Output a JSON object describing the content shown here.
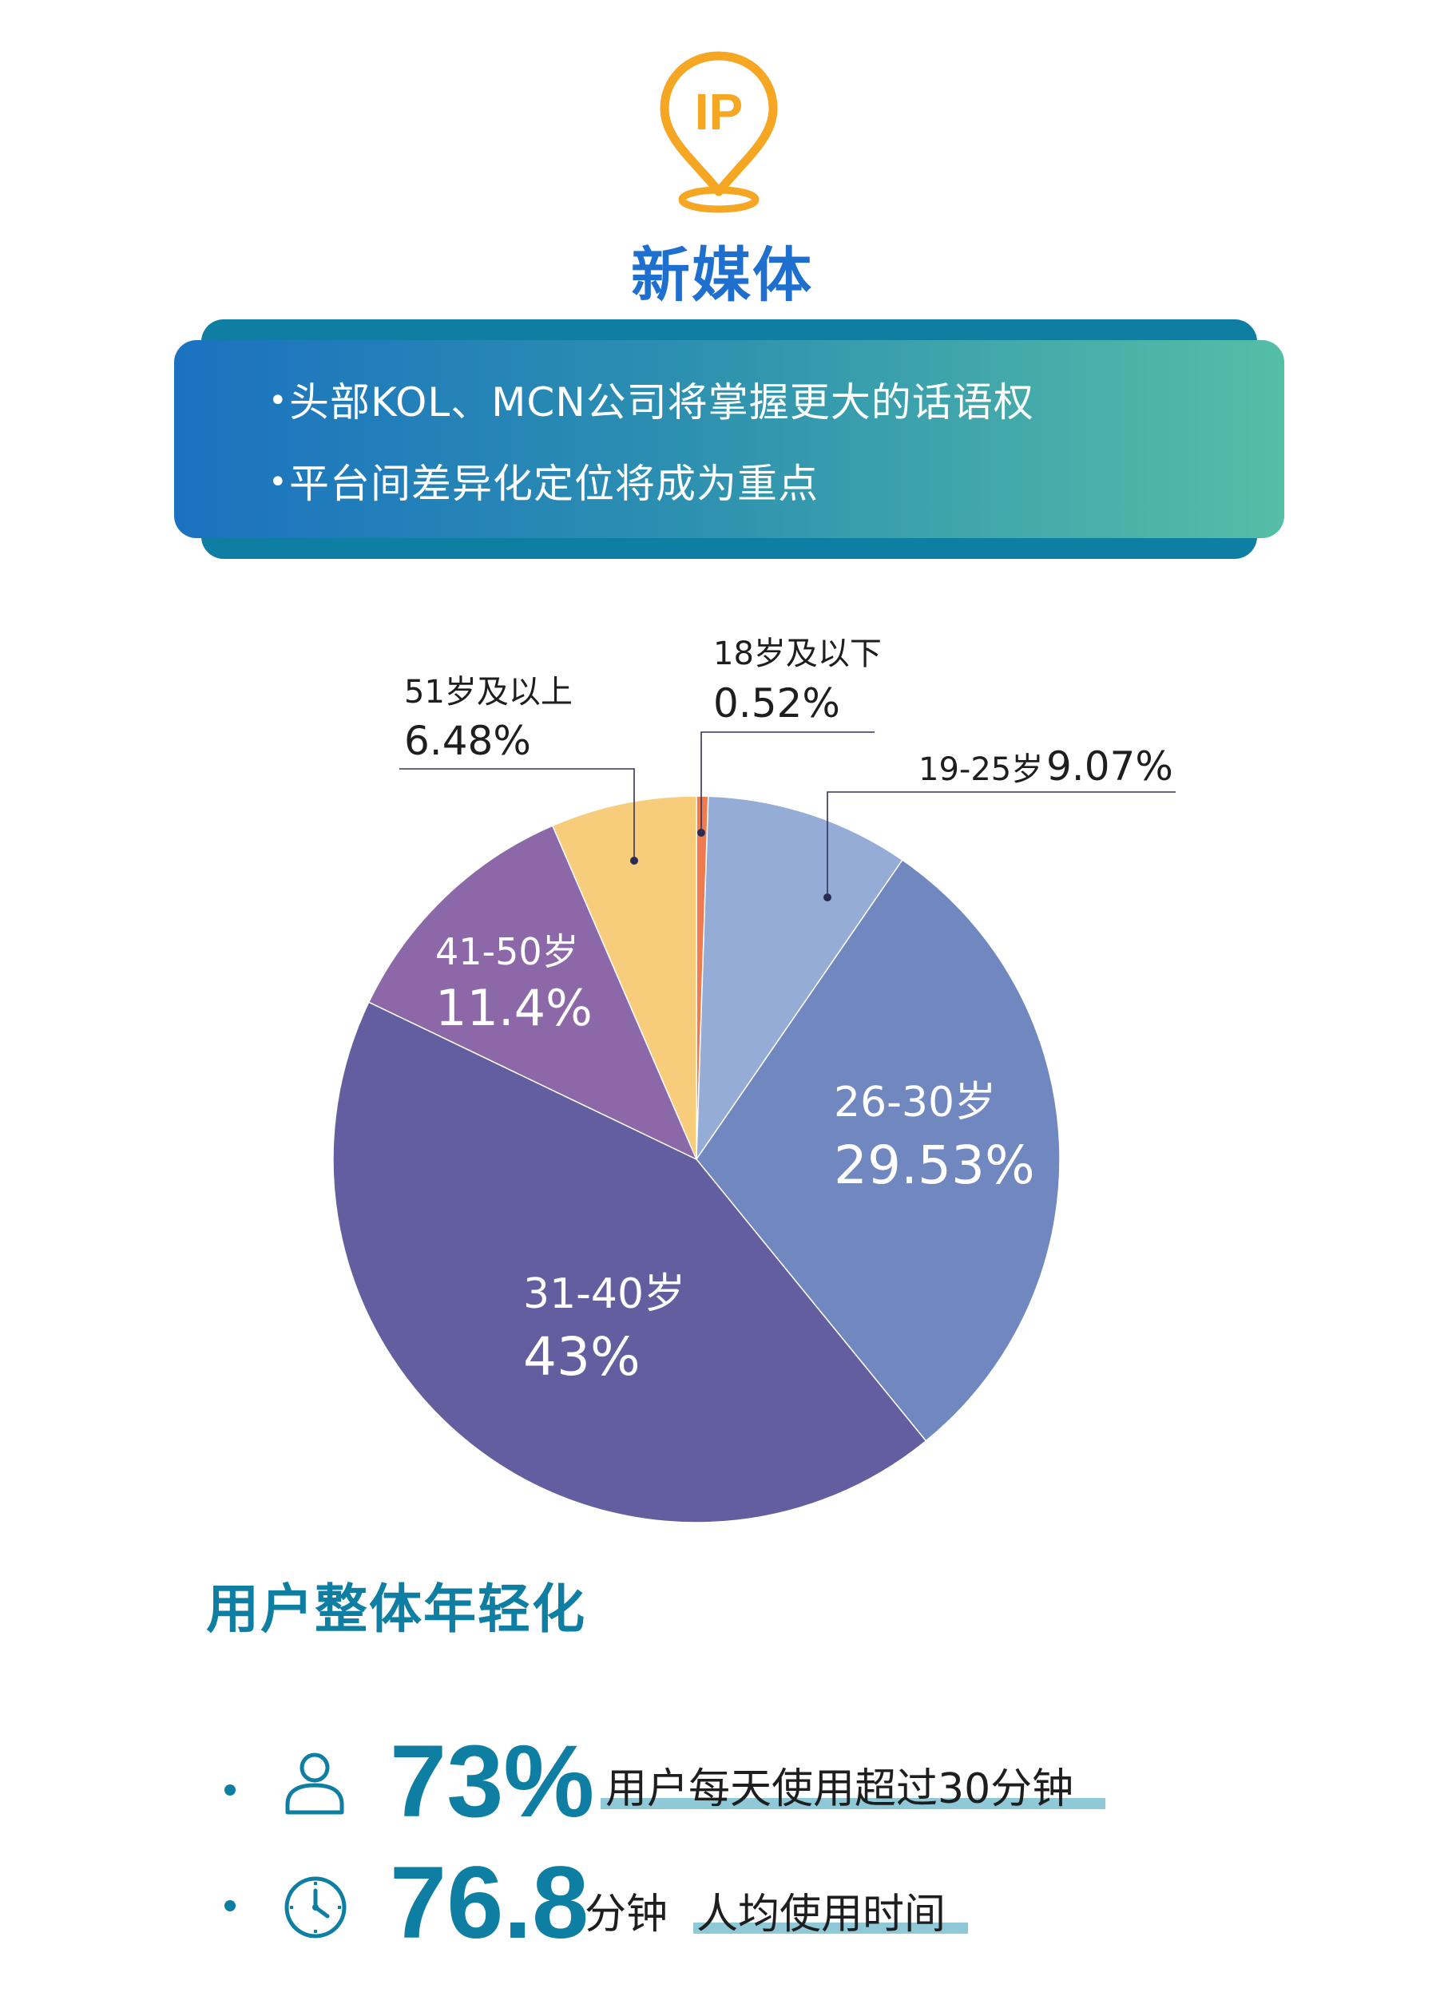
{
  "header": {
    "icon_text": "IP",
    "icon_name": "ip-location-pin-icon",
    "title": "新媒体"
  },
  "banner": {
    "bullet": "•",
    "lines": [
      "头部KOL、MCN公司将掌握更大的话语权",
      "平台间差异化定位将成为重点"
    ]
  },
  "chart_data": {
    "type": "pie",
    "categories": [
      "18岁及以下",
      "19-25岁",
      "26-30岁",
      "31-40岁",
      "41-50岁",
      "51岁及以上"
    ],
    "values": [
      0.52,
      9.07,
      29.53,
      43,
      11.4,
      6.48
    ],
    "value_labels": [
      "0.52%",
      "9.07%",
      "29.53%",
      "43%",
      "11.4%",
      "6.48%"
    ],
    "colors": [
      "#ef7b4e",
      "#94acd6",
      "#7187c0",
      "#635e9f",
      "#8d68a8",
      "#f7cc7a"
    ],
    "start_angle": "12 o'clock",
    "direction": "clockwise",
    "legend": "none"
  },
  "subtitle": "用户整体年轻化",
  "stats": [
    {
      "icon_name": "user-icon",
      "value": "73%",
      "unit": "",
      "description": "用户每天使用超过30分钟"
    },
    {
      "icon_name": "clock-icon",
      "value": "76.8",
      "unit": "分钟",
      "description": "人均使用时间"
    }
  ],
  "colors": {
    "title_blue": "#1f6fcf",
    "teal": "#0e7ea2",
    "icon_orange": "#f5a623",
    "underline": "#8fc9d8"
  }
}
